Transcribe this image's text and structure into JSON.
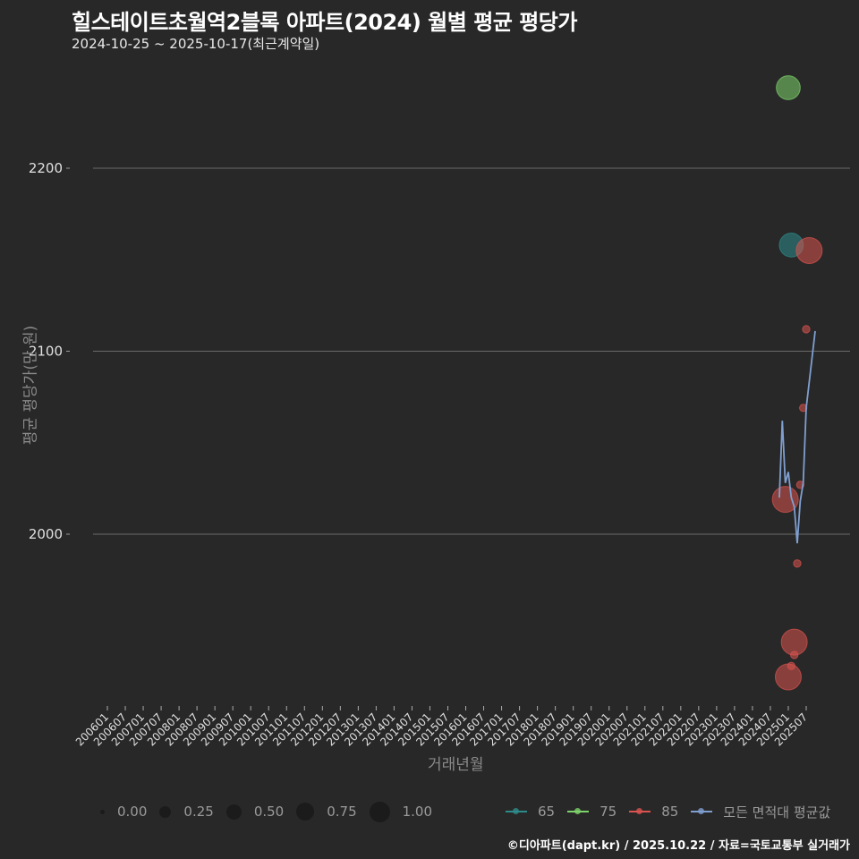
{
  "header": {
    "title": "힐스테이트초월역2블록 아파트(2024) 월별 평균 평당가",
    "subtitle": "2024-10-25 ~ 2025-10-17(최근계약일)"
  },
  "axes": {
    "x_label": "거래년월",
    "y_label": "평균 평당가(만 원)"
  },
  "footer": {
    "credit": "©디아파트(dapt.kr) / 2025.10.22 / 자료=국토교통부 실거래가"
  },
  "legend": {
    "size": [
      {
        "label": "0.00",
        "d": 5
      },
      {
        "label": "0.25",
        "d": 13
      },
      {
        "label": "0.50",
        "d": 17
      },
      {
        "label": "0.75",
        "d": 20
      },
      {
        "label": "1.00",
        "d": 23
      }
    ],
    "color": [
      {
        "label": "65",
        "color": "#2e8b8b"
      },
      {
        "label": "75",
        "color": "#7ed36a"
      },
      {
        "label": "85",
        "color": "#d9534f"
      },
      {
        "label": "모든 면적대 평균값",
        "color": "#7f9fd0"
      }
    ]
  },
  "chart_data": {
    "type": "scatter",
    "title": "힐스테이트초월역2블록 아파트(2024) 월별 평균 평당가",
    "subtitle": "2024-10-25 ~ 2025-10-17(최근계약일)",
    "xlabel": "거래년월",
    "ylabel": "평균 평당가(만 원)",
    "ylim": [
      1910,
      2250
    ],
    "y_ticks": [
      2000,
      2100,
      2200
    ],
    "x_ticks": [
      "200601",
      "200607",
      "200701",
      "200707",
      "200801",
      "200807",
      "200901",
      "200907",
      "201001",
      "201007",
      "201101",
      "201107",
      "201201",
      "201207",
      "201301",
      "201307",
      "201401",
      "201407",
      "201501",
      "201507",
      "201601",
      "201607",
      "201701",
      "201707",
      "201801",
      "201807",
      "201901",
      "201907",
      "202001",
      "202007",
      "202101",
      "202107",
      "202201",
      "202207",
      "202301",
      "202307",
      "202401",
      "202407",
      "202501",
      "202507"
    ],
    "grid": true,
    "legend_position": "bottom",
    "series": [
      {
        "name": "65",
        "color": "#2e8b8b",
        "points": [
          {
            "x": "202502",
            "y": 2158,
            "size": 0.45
          }
        ]
      },
      {
        "name": "75",
        "color": "#7ed36a",
        "points": [
          {
            "x": "202501",
            "y": 2244,
            "size": 0.45
          }
        ]
      },
      {
        "name": "85",
        "color": "#d9534f",
        "points": [
          {
            "x": "202412",
            "y": 2019,
            "size": 0.5
          },
          {
            "x": "202501",
            "y": 1922,
            "size": 0.5
          },
          {
            "x": "202502",
            "y": 1928,
            "size": 0.05
          },
          {
            "x": "202503",
            "y": 1934,
            "size": 0.05
          },
          {
            "x": "202503",
            "y": 1941,
            "size": 0.5
          },
          {
            "x": "202504",
            "y": 1984,
            "size": 0.05
          },
          {
            "x": "202505",
            "y": 2027,
            "size": 0.05
          },
          {
            "x": "202506",
            "y": 2069,
            "size": 0.05
          },
          {
            "x": "202507",
            "y": 2112,
            "size": 0.05
          },
          {
            "x": "202508",
            "y": 2155,
            "size": 0.5
          }
        ]
      },
      {
        "name": "모든 면적대 평균값",
        "color": "#7f9fd0",
        "type": "line",
        "points": [
          {
            "x": "202410",
            "y": 2020
          },
          {
            "x": "202411",
            "y": 2062
          },
          {
            "x": "202412",
            "y": 2028
          },
          {
            "x": "202501",
            "y": 2034
          },
          {
            "x": "202502",
            "y": 2020
          },
          {
            "x": "202503",
            "y": 2015
          },
          {
            "x": "202504",
            "y": 1995
          },
          {
            "x": "202505",
            "y": 2018
          },
          {
            "x": "202506",
            "y": 2028
          },
          {
            "x": "202507",
            "y": 2069
          },
          {
            "x": "202510",
            "y": 2111
          }
        ]
      }
    ]
  }
}
